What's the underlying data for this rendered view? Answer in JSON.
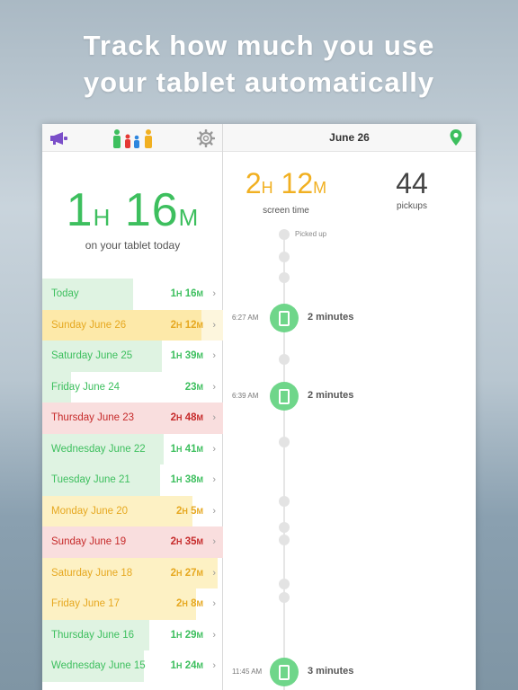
{
  "headline": {
    "line1": "Track how much you use",
    "line2": "your tablet automatically"
  },
  "left_panel": {
    "icons": {
      "announce": "megaphone-icon",
      "family": "family-icon",
      "settings": "gear-icon"
    },
    "total": {
      "hours": "1",
      "h_unit": "H",
      "minutes": "16",
      "m_unit": "M"
    },
    "total_caption": "on your tablet today",
    "days": [
      {
        "label": "Today",
        "h": "1",
        "m": "16",
        "color": "green",
        "fill": 0.5
      },
      {
        "label": "Sunday June 26",
        "h": "2",
        "m": "12",
        "color": "yellow",
        "fill": 0.88,
        "selected": true
      },
      {
        "label": "Saturday June 25",
        "h": "1",
        "m": "39",
        "color": "green",
        "fill": 0.66
      },
      {
        "label": "Friday June 24",
        "h": "",
        "m": "23",
        "color": "green",
        "fill": 0.16
      },
      {
        "label": "Thursday June 23",
        "h": "2",
        "m": "48",
        "color": "red",
        "fill": 1.0
      },
      {
        "label": "Wednesday June 22",
        "h": "1",
        "m": "41",
        "color": "green",
        "fill": 0.67
      },
      {
        "label": "Tuesday June 21",
        "h": "1",
        "m": "38",
        "color": "green",
        "fill": 0.65
      },
      {
        "label": "Monday June 20",
        "h": "2",
        "m": "5",
        "color": "yellow",
        "fill": 0.83
      },
      {
        "label": "Sunday June 19",
        "h": "2",
        "m": "35",
        "color": "red",
        "fill": 1.0
      },
      {
        "label": "Saturday June 18",
        "h": "2",
        "m": "27",
        "color": "yellow",
        "fill": 0.97
      },
      {
        "label": "Friday June 17",
        "h": "2",
        "m": "8",
        "color": "yellow",
        "fill": 0.85
      },
      {
        "label": "Thursday June 16",
        "h": "1",
        "m": "29",
        "color": "green",
        "fill": 0.59
      },
      {
        "label": "Wednesday June 15",
        "h": "1",
        "m": "24",
        "color": "green",
        "fill": 0.56
      }
    ]
  },
  "right_panel": {
    "title": "June 26",
    "location_icon": "map-pin-icon",
    "screen_time": {
      "hours": "2",
      "h_unit": "H",
      "minutes": "12",
      "m_unit": "M",
      "caption": "screen time"
    },
    "pickups": {
      "value": "44",
      "caption": "pickups"
    },
    "timeline": {
      "picked_up_label": "Picked up",
      "sessions": [
        {
          "time": "6:27 AM",
          "duration": "2 minutes"
        },
        {
          "time": "6:39 AM",
          "duration": "2 minutes"
        },
        {
          "time": "11:45 AM",
          "duration": "3 minutes"
        }
      ]
    }
  },
  "colors": {
    "green": "#3dbf5e",
    "yellow": "#e6a820",
    "red": "#c62a2a"
  }
}
